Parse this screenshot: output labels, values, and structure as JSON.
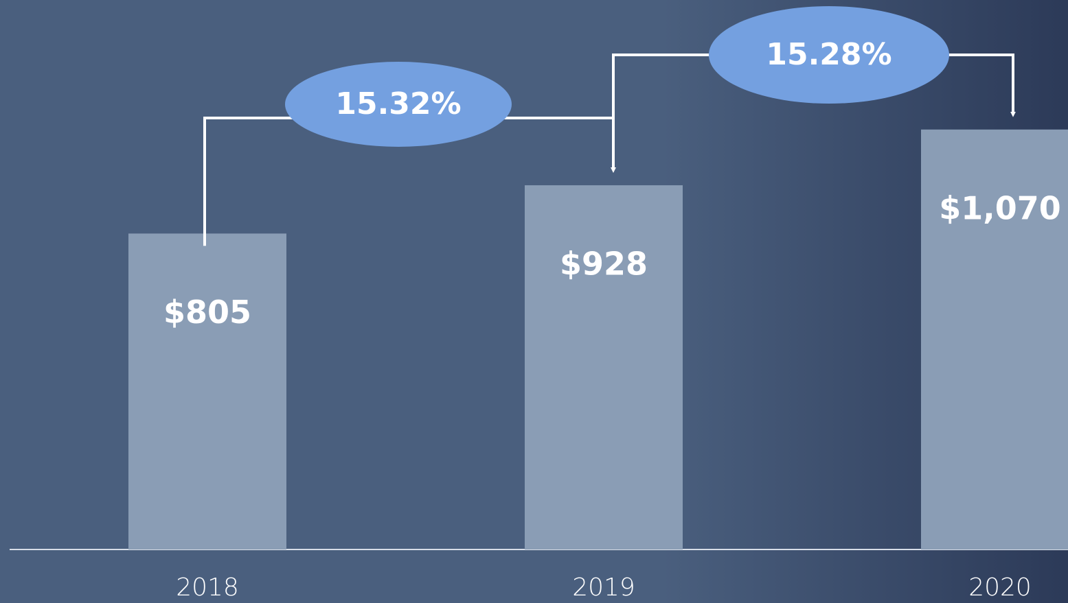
{
  "chart_data": {
    "type": "bar",
    "categories": [
      "2018",
      "2019",
      "2020"
    ],
    "values": [
      805,
      928,
      1070
    ],
    "value_labels": [
      "$805",
      "$928",
      "$1,070"
    ],
    "color": "#8a9db5",
    "ylim": [
      0,
      1400
    ],
    "annotations": [
      "15.32%",
      "15.28%"
    ],
    "annotation_color": "#74a0e0"
  }
}
